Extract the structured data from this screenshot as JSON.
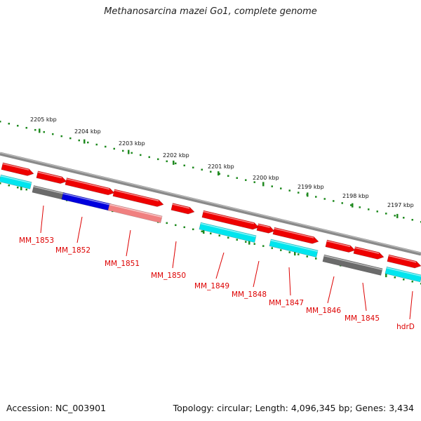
{
  "title": "Methanosarcina mazei Go1, complete genome",
  "footer": {
    "accession": "Accession: NC_003901",
    "summary": "Topology: circular; Length: 4,096,345 bp; Genes: 3,434"
  },
  "colors": {
    "backbone": "#8a8a8a",
    "tick": "#1f8a1f",
    "forward_gene": "#ee0000",
    "reverse_gene": "#00e5ee",
    "gray_feature": "#6b6b6b",
    "blue_feature": "#0000dd",
    "pink_feature": "#f08080",
    "label": "#dd0000"
  },
  "scale_labels": [
    "2205 kbp",
    "2204 kbp",
    "2203 kbp",
    "2202 kbp",
    "2201 kbp",
    "2200 kbp",
    "2199 kbp",
    "2198 kbp",
    "2197 kbp"
  ],
  "gene_labels": [
    "MM_1853",
    "MM_1852",
    "MM_1851",
    "MM_1850",
    "MM_1849",
    "MM_1848",
    "MM_1847",
    "MM_1846",
    "MM_1845",
    "hdrD"
  ]
}
